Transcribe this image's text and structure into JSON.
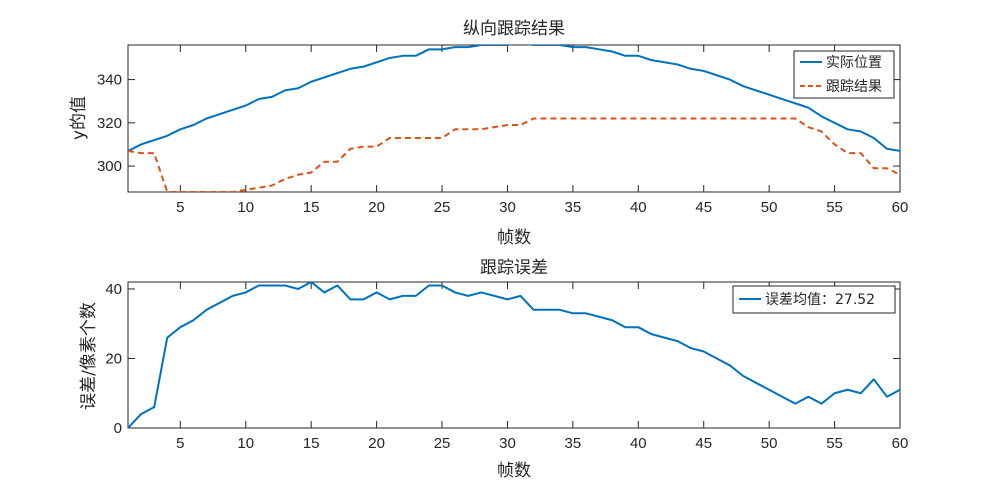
{
  "chart_data": [
    {
      "type": "line",
      "title": "纵向跟踪结果",
      "xlabel": "帧数",
      "ylabel": "y的值",
      "xlim": [
        1,
        60
      ],
      "ylim": [
        288,
        356
      ],
      "xticks": [
        5,
        10,
        15,
        20,
        25,
        30,
        35,
        40,
        45,
        50,
        55,
        60
      ],
      "yticks": [
        300,
        320,
        340
      ],
      "grid": false,
      "legend_position": "top-right",
      "x": [
        1,
        2,
        3,
        4,
        5,
        6,
        7,
        8,
        9,
        10,
        11,
        12,
        13,
        14,
        15,
        16,
        17,
        18,
        19,
        20,
        21,
        22,
        23,
        24,
        25,
        26,
        27,
        28,
        29,
        30,
        31,
        32,
        33,
        34,
        35,
        36,
        37,
        38,
        39,
        40,
        41,
        42,
        43,
        44,
        45,
        46,
        47,
        48,
        49,
        50,
        51,
        52,
        53,
        54,
        55,
        56,
        57,
        58,
        59,
        60
      ],
      "series": [
        {
          "name": "实际位置",
          "color": "#0072BD",
          "style": "solid",
          "values": [
            307,
            310,
            312,
            314,
            317,
            319,
            322,
            324,
            326,
            328,
            331,
            332,
            335,
            336,
            339,
            341,
            343,
            345,
            346,
            348,
            350,
            351,
            351,
            354,
            354,
            355,
            355,
            356,
            356,
            356,
            357,
            356,
            356,
            356,
            355,
            355,
            354,
            353,
            351,
            351,
            349,
            348,
            347,
            345,
            344,
            342,
            340,
            337,
            335,
            333,
            331,
            329,
            327,
            323,
            320,
            317,
            316,
            313,
            308,
            307
          ],
          "color_name": "blue"
        },
        {
          "name": "跟踪结果",
          "color": "#D95319",
          "style": "dashed",
          "values": [
            307,
            306,
            306,
            288,
            288,
            288,
            288,
            288,
            288,
            289,
            290,
            291,
            294,
            296,
            297,
            302,
            302,
            308,
            309,
            309,
            313,
            313,
            313,
            313,
            313,
            317,
            317,
            317,
            318,
            319,
            319,
            322,
            322,
            322,
            322,
            322,
            322,
            322,
            322,
            322,
            322,
            322,
            322,
            322,
            322,
            322,
            322,
            322,
            322,
            322,
            322,
            322,
            318,
            316,
            310,
            306,
            306,
            299,
            299,
            296
          ],
          "color_name": "orange-red"
        }
      ]
    },
    {
      "type": "line",
      "title": "跟踪误差",
      "xlabel": "帧数",
      "ylabel": "误差/像素个数",
      "xlim": [
        1,
        60
      ],
      "ylim": [
        0,
        42
      ],
      "xticks": [
        5,
        10,
        15,
        20,
        25,
        30,
        35,
        40,
        45,
        50,
        55,
        60
      ],
      "yticks": [
        0,
        20,
        40
      ],
      "grid": false,
      "legend_position": "top-right",
      "x": [
        1,
        2,
        3,
        4,
        5,
        6,
        7,
        8,
        9,
        10,
        11,
        12,
        13,
        14,
        15,
        16,
        17,
        18,
        19,
        20,
        21,
        22,
        23,
        24,
        25,
        26,
        27,
        28,
        29,
        30,
        31,
        32,
        33,
        34,
        35,
        36,
        37,
        38,
        39,
        40,
        41,
        42,
        43,
        44,
        45,
        46,
        47,
        48,
        49,
        50,
        51,
        52,
        53,
        54,
        55,
        56,
        57,
        58,
        59,
        60
      ],
      "series": [
        {
          "name": "误差均值：27.52",
          "color": "#0072BD",
          "style": "solid",
          "values": [
            0,
            4,
            6,
            26,
            29,
            31,
            34,
            36,
            38,
            39,
            41,
            41,
            41,
            40,
            42,
            39,
            41,
            37,
            37,
            39,
            37,
            38,
            38,
            41,
            41,
            39,
            38,
            39,
            38,
            37,
            38,
            34,
            34,
            34,
            33,
            33,
            32,
            31,
            29,
            29,
            27,
            26,
            25,
            23,
            22,
            20,
            18,
            15,
            13,
            11,
            9,
            7,
            9,
            7,
            10,
            11,
            10,
            14,
            9,
            11
          ],
          "color_name": "blue"
        }
      ]
    }
  ]
}
